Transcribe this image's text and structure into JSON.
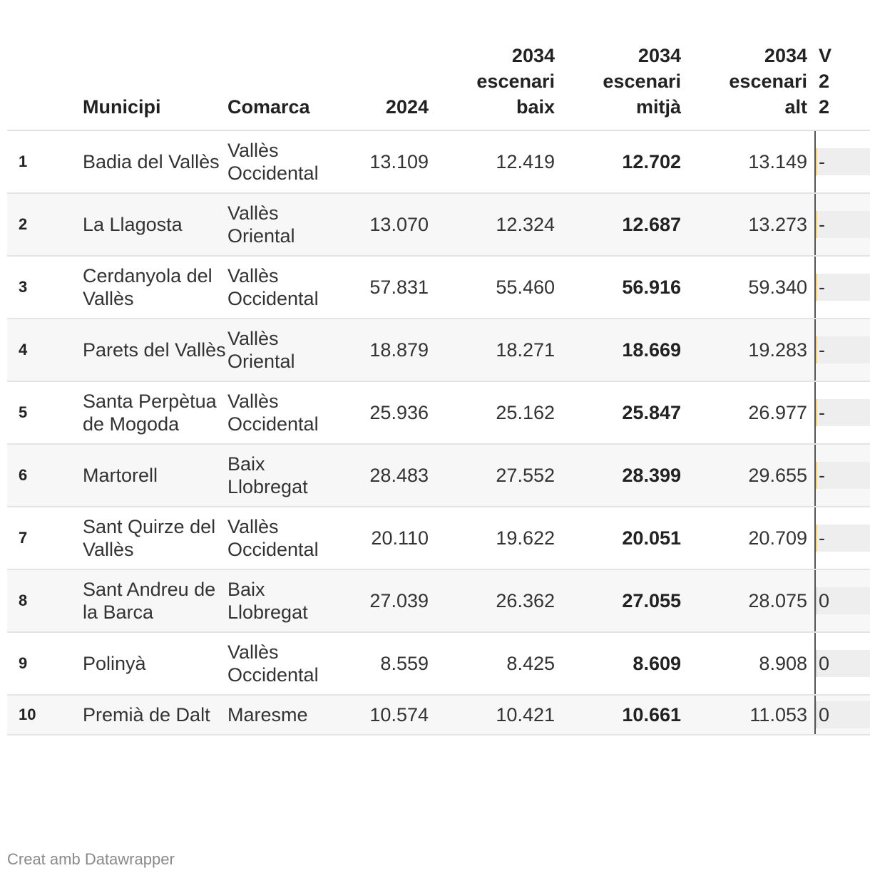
{
  "table": {
    "headers": {
      "rank": "",
      "municipi": "Municipi",
      "comarca": "Comarca",
      "y2024": "2024",
      "low": [
        "2034",
        "escenari",
        "baix"
      ],
      "mid": [
        "2034",
        "escenari",
        "mitjà"
      ],
      "high": [
        "2034",
        "escenari",
        "alt"
      ],
      "variation": [
        "V",
        "2",
        "2"
      ]
    },
    "rows": [
      {
        "rank": "1",
        "municipi": "Badia del Vallès",
        "comarca": "Vallès Occidental",
        "y2024": "13.109",
        "low": "12.419",
        "mid": "12.702",
        "high": "13.149",
        "var_sign": "neg",
        "var_label": "-"
      },
      {
        "rank": "2",
        "municipi": "La Llagosta",
        "comarca": "Vallès Oriental",
        "y2024": "13.070",
        "low": "12.324",
        "mid": "12.687",
        "high": "13.273",
        "var_sign": "neg",
        "var_label": "-"
      },
      {
        "rank": "3",
        "municipi": "Cerdanyola del Vallès",
        "comarca": "Vallès Occidental",
        "y2024": "57.831",
        "low": "55.460",
        "mid": "56.916",
        "high": "59.340",
        "var_sign": "neg",
        "var_label": "-"
      },
      {
        "rank": "4",
        "municipi": "Parets del Vallès",
        "comarca": "Vallès Oriental",
        "y2024": "18.879",
        "low": "18.271",
        "mid": "18.669",
        "high": "19.283",
        "var_sign": "neg",
        "var_label": "-"
      },
      {
        "rank": "5",
        "municipi": "Santa Perpètua de Mogoda",
        "comarca": "Vallès Occidental",
        "y2024": "25.936",
        "low": "25.162",
        "mid": "25.847",
        "high": "26.977",
        "var_sign": "neg",
        "var_label": "-"
      },
      {
        "rank": "6",
        "municipi": "Martorell",
        "comarca": "Baix Llobregat",
        "y2024": "28.483",
        "low": "27.552",
        "mid": "28.399",
        "high": "29.655",
        "var_sign": "neg",
        "var_label": "-"
      },
      {
        "rank": "7",
        "municipi": "Sant Quirze del Vallès",
        "comarca": "Vallès Occidental",
        "y2024": "20.110",
        "low": "19.622",
        "mid": "20.051",
        "high": "20.709",
        "var_sign": "neg",
        "var_label": "-"
      },
      {
        "rank": "8",
        "municipi": "Sant Andreu de la Barca",
        "comarca": "Baix Llobregat",
        "y2024": "27.039",
        "low": "26.362",
        "mid": "27.055",
        "high": "28.075",
        "var_sign": "pos",
        "var_label": "0"
      },
      {
        "rank": "9",
        "municipi": "Polinyà",
        "comarca": "Vallès Occidental",
        "y2024": "8.559",
        "low": "8.425",
        "mid": "8.609",
        "high": "8.908",
        "var_sign": "pos",
        "var_label": "0"
      },
      {
        "rank": "10",
        "municipi": "Premià de Dalt",
        "comarca": "Maresme",
        "y2024": "10.574",
        "low": "10.421",
        "mid": "10.661",
        "high": "11.053",
        "var_sign": "pos",
        "var_label": "0"
      }
    ]
  },
  "footer": {
    "credit": "Creat amb Datawrapper"
  }
}
